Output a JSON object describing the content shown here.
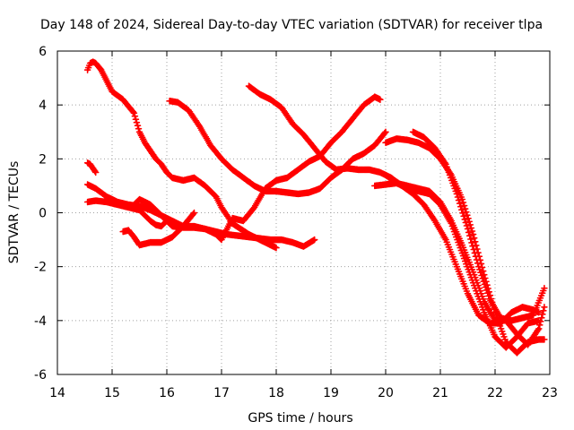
{
  "chart_data": {
    "type": "scatter",
    "title": "Day 148 of 2024, Sidereal Day-to-day VTEC variation (SDTVAR) for receiver tlpa",
    "xlabel": "GPS time / hours",
    "ylabel": "SDTVAR / TECUs",
    "xlim": [
      14,
      23
    ],
    "ylim": [
      -6,
      6
    ],
    "xticks": [
      "14",
      "15",
      "16",
      "17",
      "18",
      "19",
      "20",
      "21",
      "22",
      "23"
    ],
    "yticks": [
      "6",
      "4",
      "2",
      "0",
      "-2",
      "-4",
      "-6"
    ],
    "grid": true,
    "marker": "plus",
    "color": "#ff0000",
    "series": [
      {
        "name": "s1",
        "x": [
          14.55,
          14.6,
          14.65,
          14.7,
          14.8,
          14.9,
          15.0,
          15.2,
          15.4,
          15.5,
          15.6,
          15.7,
          15.8,
          15.9,
          16.0,
          16.1,
          16.3,
          16.5,
          16.7,
          16.9,
          17.0,
          17.2,
          17.5,
          17.7,
          17.9,
          18.0
        ],
        "y": [
          5.3,
          5.55,
          5.6,
          5.55,
          5.3,
          4.9,
          4.5,
          4.2,
          3.7,
          3.0,
          2.6,
          2.3,
          2.0,
          1.8,
          1.5,
          1.3,
          1.2,
          1.3,
          1.0,
          0.6,
          0.2,
          -0.4,
          -0.8,
          -1.0,
          -1.2,
          -1.3
        ]
      },
      {
        "name": "s2",
        "x": [
          14.55,
          14.6,
          14.65,
          14.7
        ],
        "y": [
          1.85,
          1.8,
          1.65,
          1.5
        ]
      },
      {
        "name": "s3",
        "x": [
          14.55,
          14.7,
          14.9,
          15.1,
          15.3,
          15.5,
          15.7,
          15.9,
          16.1,
          16.3,
          16.5,
          16.7,
          16.9,
          17.1,
          17.3,
          17.5,
          17.7,
          17.9,
          18.1,
          18.3,
          18.5,
          18.7
        ],
        "y": [
          1.05,
          0.9,
          0.6,
          0.4,
          0.3,
          0.25,
          0.1,
          -0.1,
          -0.5,
          -0.55,
          -0.55,
          -0.6,
          -0.7,
          -0.8,
          -0.85,
          -0.9,
          -0.95,
          -1.0,
          -1.0,
          -1.1,
          -1.25,
          -1.0
        ]
      },
      {
        "name": "s4",
        "x": [
          14.55,
          14.7,
          14.9,
          15.1,
          15.3,
          15.5,
          15.6,
          15.7,
          15.8,
          15.9,
          16.0
        ],
        "y": [
          0.4,
          0.45,
          0.4,
          0.3,
          0.2,
          0.1,
          -0.1,
          -0.3,
          -0.45,
          -0.5,
          -0.3
        ]
      },
      {
        "name": "s5",
        "x": [
          15.2,
          15.3,
          15.4,
          15.5,
          15.7,
          15.9,
          16.1,
          16.3,
          16.5
        ],
        "y": [
          -0.7,
          -0.65,
          -0.9,
          -1.2,
          -1.1,
          -1.1,
          -0.9,
          -0.5,
          0.0
        ]
      },
      {
        "name": "s6",
        "x": [
          15.4,
          15.5,
          15.7,
          15.9,
          16.1,
          16.3,
          16.5,
          16.7,
          16.9,
          17.0,
          17.2,
          17.4,
          17.6,
          17.8,
          18.0,
          18.2,
          18.4,
          18.6,
          18.8,
          19.0,
          19.2,
          19.4,
          19.6,
          19.8,
          19.9
        ],
        "y": [
          0.3,
          0.5,
          0.3,
          -0.1,
          -0.3,
          -0.5,
          -0.5,
          -0.6,
          -0.8,
          -1.0,
          -0.2,
          -0.3,
          0.2,
          0.9,
          1.2,
          1.3,
          1.6,
          1.9,
          2.1,
          2.6,
          3.0,
          3.5,
          4.0,
          4.3,
          4.2
        ]
      },
      {
        "name": "s7",
        "x": [
          16.05,
          16.2,
          16.4,
          16.6,
          16.8,
          17.0,
          17.2,
          17.4,
          17.6,
          17.8,
          18.0,
          18.2,
          18.4,
          18.6,
          18.8,
          19.0,
          19.2,
          19.4,
          19.6,
          19.8,
          20.0
        ],
        "y": [
          4.15,
          4.1,
          3.8,
          3.2,
          2.5,
          2.0,
          1.6,
          1.3,
          1.0,
          0.8,
          0.8,
          0.75,
          0.7,
          0.75,
          0.9,
          1.3,
          1.6,
          2.0,
          2.2,
          2.5,
          3.0
        ]
      },
      {
        "name": "s8",
        "x": [
          17.5,
          17.7,
          17.9,
          18.1,
          18.3,
          18.5,
          18.7,
          18.9,
          19.1,
          19.3,
          19.5,
          19.7,
          19.9,
          20.1,
          20.3,
          20.5,
          20.7,
          20.9,
          21.1,
          21.3,
          21.5,
          21.7,
          21.9,
          22.1,
          22.3,
          22.5,
          22.7,
          22.8
        ],
        "y": [
          4.7,
          4.4,
          4.2,
          3.9,
          3.3,
          2.9,
          2.4,
          1.9,
          1.6,
          1.65,
          1.6,
          1.6,
          1.5,
          1.3,
          1.0,
          0.7,
          0.3,
          -0.3,
          -1.0,
          -2.0,
          -3.0,
          -3.8,
          -4.1,
          -4.1,
          -3.7,
          -3.5,
          -3.6,
          -3.7
        ]
      },
      {
        "name": "s9",
        "x": [
          19.8,
          20.0,
          20.2,
          20.4,
          20.6,
          20.8,
          21.0,
          21.2,
          21.4,
          21.6,
          21.8,
          22.0,
          22.2,
          22.4,
          22.6,
          22.8,
          22.9
        ],
        "y": [
          1.0,
          1.05,
          1.1,
          1.0,
          0.9,
          0.8,
          0.4,
          -0.3,
          -1.2,
          -2.2,
          -3.3,
          -4.0,
          -4.0,
          -4.5,
          -4.9,
          -4.3,
          -3.5
        ]
      },
      {
        "name": "s10",
        "x": [
          20.0,
          20.2,
          20.4,
          20.6,
          20.8,
          21.0,
          21.2,
          21.4,
          21.6,
          21.8,
          22.0,
          22.2,
          22.4,
          22.6,
          22.8,
          22.9
        ],
        "y": [
          2.6,
          2.75,
          2.7,
          2.6,
          2.4,
          2.0,
          1.4,
          0.5,
          -0.8,
          -2.3,
          -3.7,
          -4.8,
          -5.2,
          -4.8,
          -4.7,
          -4.7
        ]
      },
      {
        "name": "s11",
        "x": [
          20.5,
          20.7,
          20.9,
          21.1,
          21.3,
          21.5,
          21.7,
          21.9,
          22.1,
          22.3,
          22.5,
          22.7,
          22.9
        ],
        "y": [
          3.0,
          2.8,
          2.4,
          1.8,
          0.7,
          -0.6,
          -2.0,
          -3.2,
          -3.9,
          -4.0,
          -3.9,
          -3.8,
          -2.8
        ]
      },
      {
        "name": "s12",
        "x": [
          20.0,
          20.2,
          20.4,
          20.6,
          20.8,
          21.0,
          21.2,
          21.4,
          21.6,
          21.8,
          22.0,
          22.2,
          22.4,
          22.6,
          22.8
        ],
        "y": [
          1.4,
          1.1,
          0.9,
          0.8,
          0.7,
          0.3,
          -0.4,
          -1.5,
          -2.6,
          -3.7,
          -4.6,
          -5.0,
          -4.6,
          -4.1,
          -4.0
        ]
      }
    ]
  }
}
